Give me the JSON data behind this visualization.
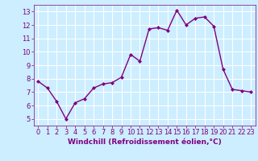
{
  "x": [
    0,
    1,
    2,
    3,
    4,
    5,
    6,
    7,
    8,
    9,
    10,
    11,
    12,
    13,
    14,
    15,
    16,
    17,
    18,
    19,
    20,
    21,
    22,
    23
  ],
  "y": [
    7.8,
    7.3,
    6.3,
    5.0,
    6.2,
    6.5,
    7.3,
    7.6,
    7.7,
    8.1,
    9.8,
    9.3,
    11.7,
    11.8,
    11.6,
    13.1,
    12.0,
    12.5,
    12.6,
    11.9,
    8.7,
    7.2,
    7.1,
    7.0
  ],
  "line_color": "#800080",
  "marker": "D",
  "marker_size": 2,
  "bg_color": "#cceeff",
  "grid_color": "#ffffff",
  "xlabel": "Windchill (Refroidissement éolien,°C)",
  "xlabel_color": "#800080",
  "tick_color": "#800080",
  "xlim": [
    -0.5,
    23.5
  ],
  "ylim": [
    4.5,
    13.5
  ],
  "yticks": [
    5,
    6,
    7,
    8,
    9,
    10,
    11,
    12,
    13
  ],
  "xticks": [
    0,
    1,
    2,
    3,
    4,
    5,
    6,
    7,
    8,
    9,
    10,
    11,
    12,
    13,
    14,
    15,
    16,
    17,
    18,
    19,
    20,
    21,
    22,
    23
  ],
  "xtick_labels": [
    "0",
    "1",
    "2",
    "3",
    "4",
    "5",
    "6",
    "7",
    "8",
    "9",
    "10",
    "11",
    "12",
    "13",
    "14",
    "15",
    "16",
    "17",
    "18",
    "19",
    "20",
    "21",
    "22",
    "23"
  ],
  "line_width": 1.0,
  "font_size": 6.0,
  "xlabel_fontsize": 6.5
}
